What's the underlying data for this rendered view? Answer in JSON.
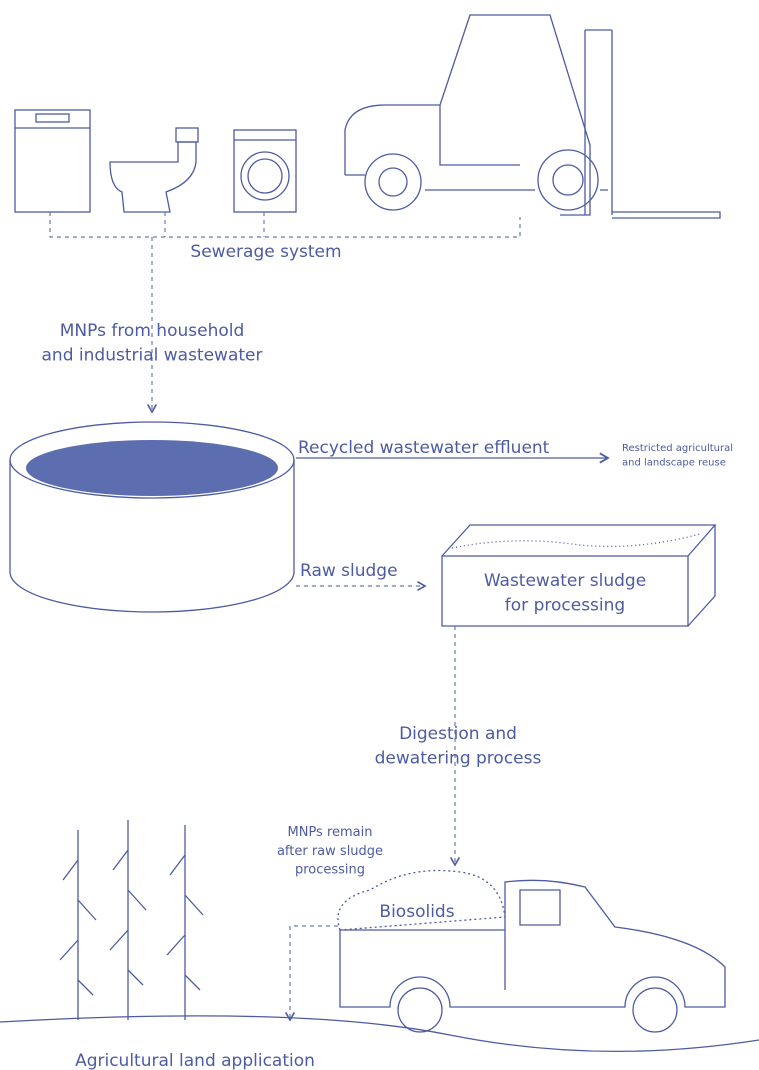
{
  "labels": {
    "sewerage": {
      "lines": [
        "Sewerage system"
      ]
    },
    "source": {
      "lines": [
        "MNPs from household",
        "and industrial wastewater"
      ]
    },
    "effluent": {
      "lines": [
        "Recycled wastewater effluent"
      ]
    },
    "reuse": {
      "lines": [
        "Restricted agricultural",
        "and landscape reuse"
      ]
    },
    "raw_sludge": {
      "lines": [
        "Raw sludge"
      ]
    },
    "sludge_box": {
      "lines": [
        "Wastewater sludge",
        "for processing"
      ]
    },
    "digestion": {
      "lines": [
        "Digestion and",
        "dewatering process"
      ]
    },
    "remain": {
      "lines": [
        "MNPs remain",
        "after raw sludge",
        "processing"
      ]
    },
    "biosolids": {
      "lines": [
        "Biosolids"
      ]
    },
    "land": {
      "lines": [
        "Agricultural land application"
      ]
    }
  }
}
